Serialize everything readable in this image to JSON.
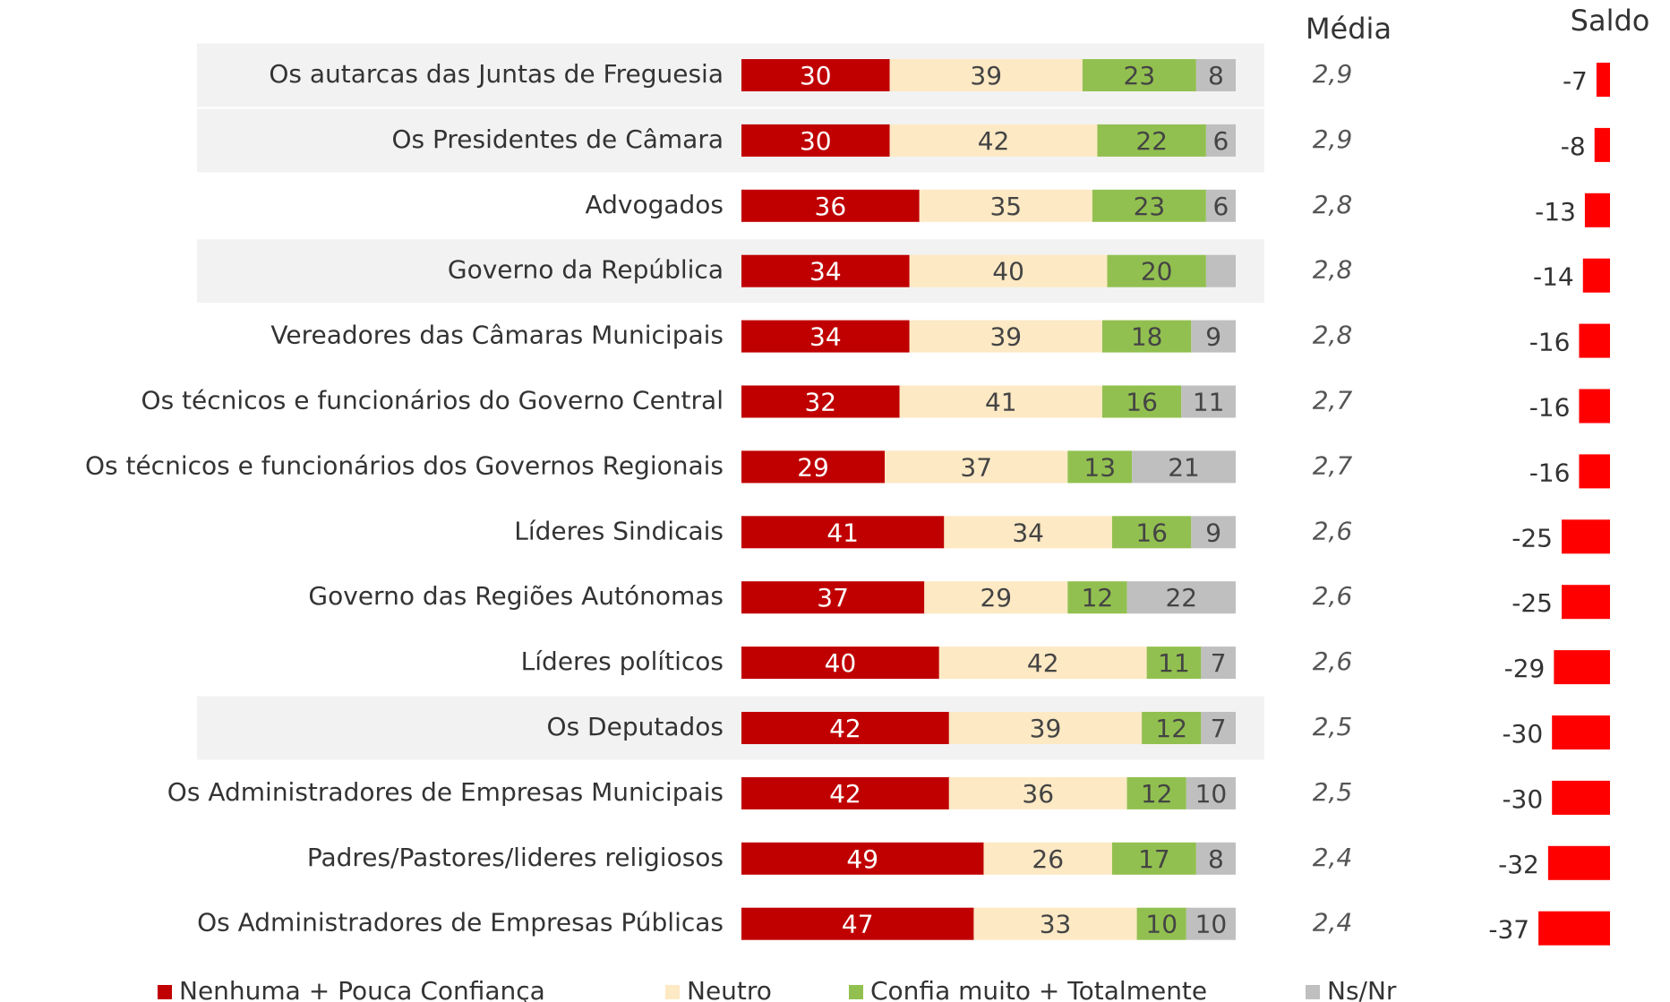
{
  "chart_data": {
    "type": "stacked-bar",
    "categories": [
      "Os autarcas das Juntas de Freguesia",
      "Os Presidentes de Câmara",
      "Advogados",
      "Governo da República",
      "Vereadores das Câmaras Municipais",
      "Os técnicos e funcionários do Governo Central",
      "Os técnicos e funcionários dos Governos Regionais",
      "Líderes Sindicais",
      "Governo das Regiões Autónomas",
      "Líderes políticos",
      "Os Deputados",
      "Os Administradores de Empresas Municipais",
      "Padres/Pastores/lideres religiosos",
      "Os Administradores de Empresas Públicas"
    ],
    "highlighted_rows": [
      0,
      1,
      3,
      10
    ],
    "xlim": [
      0,
      100
    ],
    "series": [
      {
        "name": "Nenhuma + Pouca Confiança",
        "color": "#c00000",
        "values": [
          30,
          30,
          36,
          34,
          34,
          32,
          29,
          41,
          37,
          40,
          42,
          42,
          49,
          47
        ]
      },
      {
        "name": "Neutro",
        "color": "#fde9c4",
        "values": [
          39,
          42,
          35,
          40,
          39,
          41,
          37,
          34,
          29,
          42,
          39,
          36,
          26,
          33
        ]
      },
      {
        "name": "Confia muito + Totalmente",
        "color": "#92c050",
        "values": [
          23,
          22,
          23,
          20,
          18,
          16,
          13,
          16,
          12,
          11,
          12,
          12,
          17,
          10
        ]
      },
      {
        "name": "Ns/Nr",
        "color": "#bfbfbf",
        "values": [
          8,
          6,
          6,
          6,
          9,
          11,
          21,
          9,
          22,
          7,
          7,
          10,
          8,
          10
        ],
        "value_labels": [
          "8",
          "6",
          "6",
          null,
          "9",
          "11",
          "21",
          "9",
          "22",
          "7",
          "7",
          "10",
          "8",
          "10"
        ]
      }
    ],
    "media": {
      "title": "Média",
      "values": [
        2.9,
        2.9,
        2.8,
        2.8,
        2.8,
        2.7,
        2.7,
        2.6,
        2.6,
        2.6,
        2.5,
        2.5,
        2.4,
        2.4
      ],
      "value_labels": [
        "2,9",
        "2,9",
        "2,8",
        "2,8",
        "2,8",
        "2,7",
        "2,7",
        "2,6",
        "2,6",
        "2,6",
        "2,5",
        "2,5",
        "2,4",
        "2,4"
      ]
    },
    "saldo": {
      "title": "Saldo",
      "color": "#ff0000",
      "values": [
        -7,
        -8,
        -13,
        -14,
        -16,
        -16,
        -16,
        -25,
        -25,
        -29,
        -30,
        -30,
        -32,
        -37
      ]
    }
  }
}
